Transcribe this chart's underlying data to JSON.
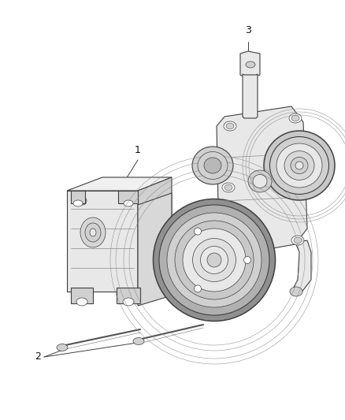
{
  "background_color": "#ffffff",
  "line_color": "#404040",
  "line_color_light": "#888888",
  "shade_light": "#e8e8e8",
  "shade_mid": "#d0d0d0",
  "shade_dark": "#b0b0b0",
  "shade_darker": "#909090",
  "label_color": "#111111",
  "figsize": [
    4.38,
    5.33
  ],
  "dpi": 100,
  "xlim": [
    0,
    438
  ],
  "ylim": [
    0,
    533
  ]
}
